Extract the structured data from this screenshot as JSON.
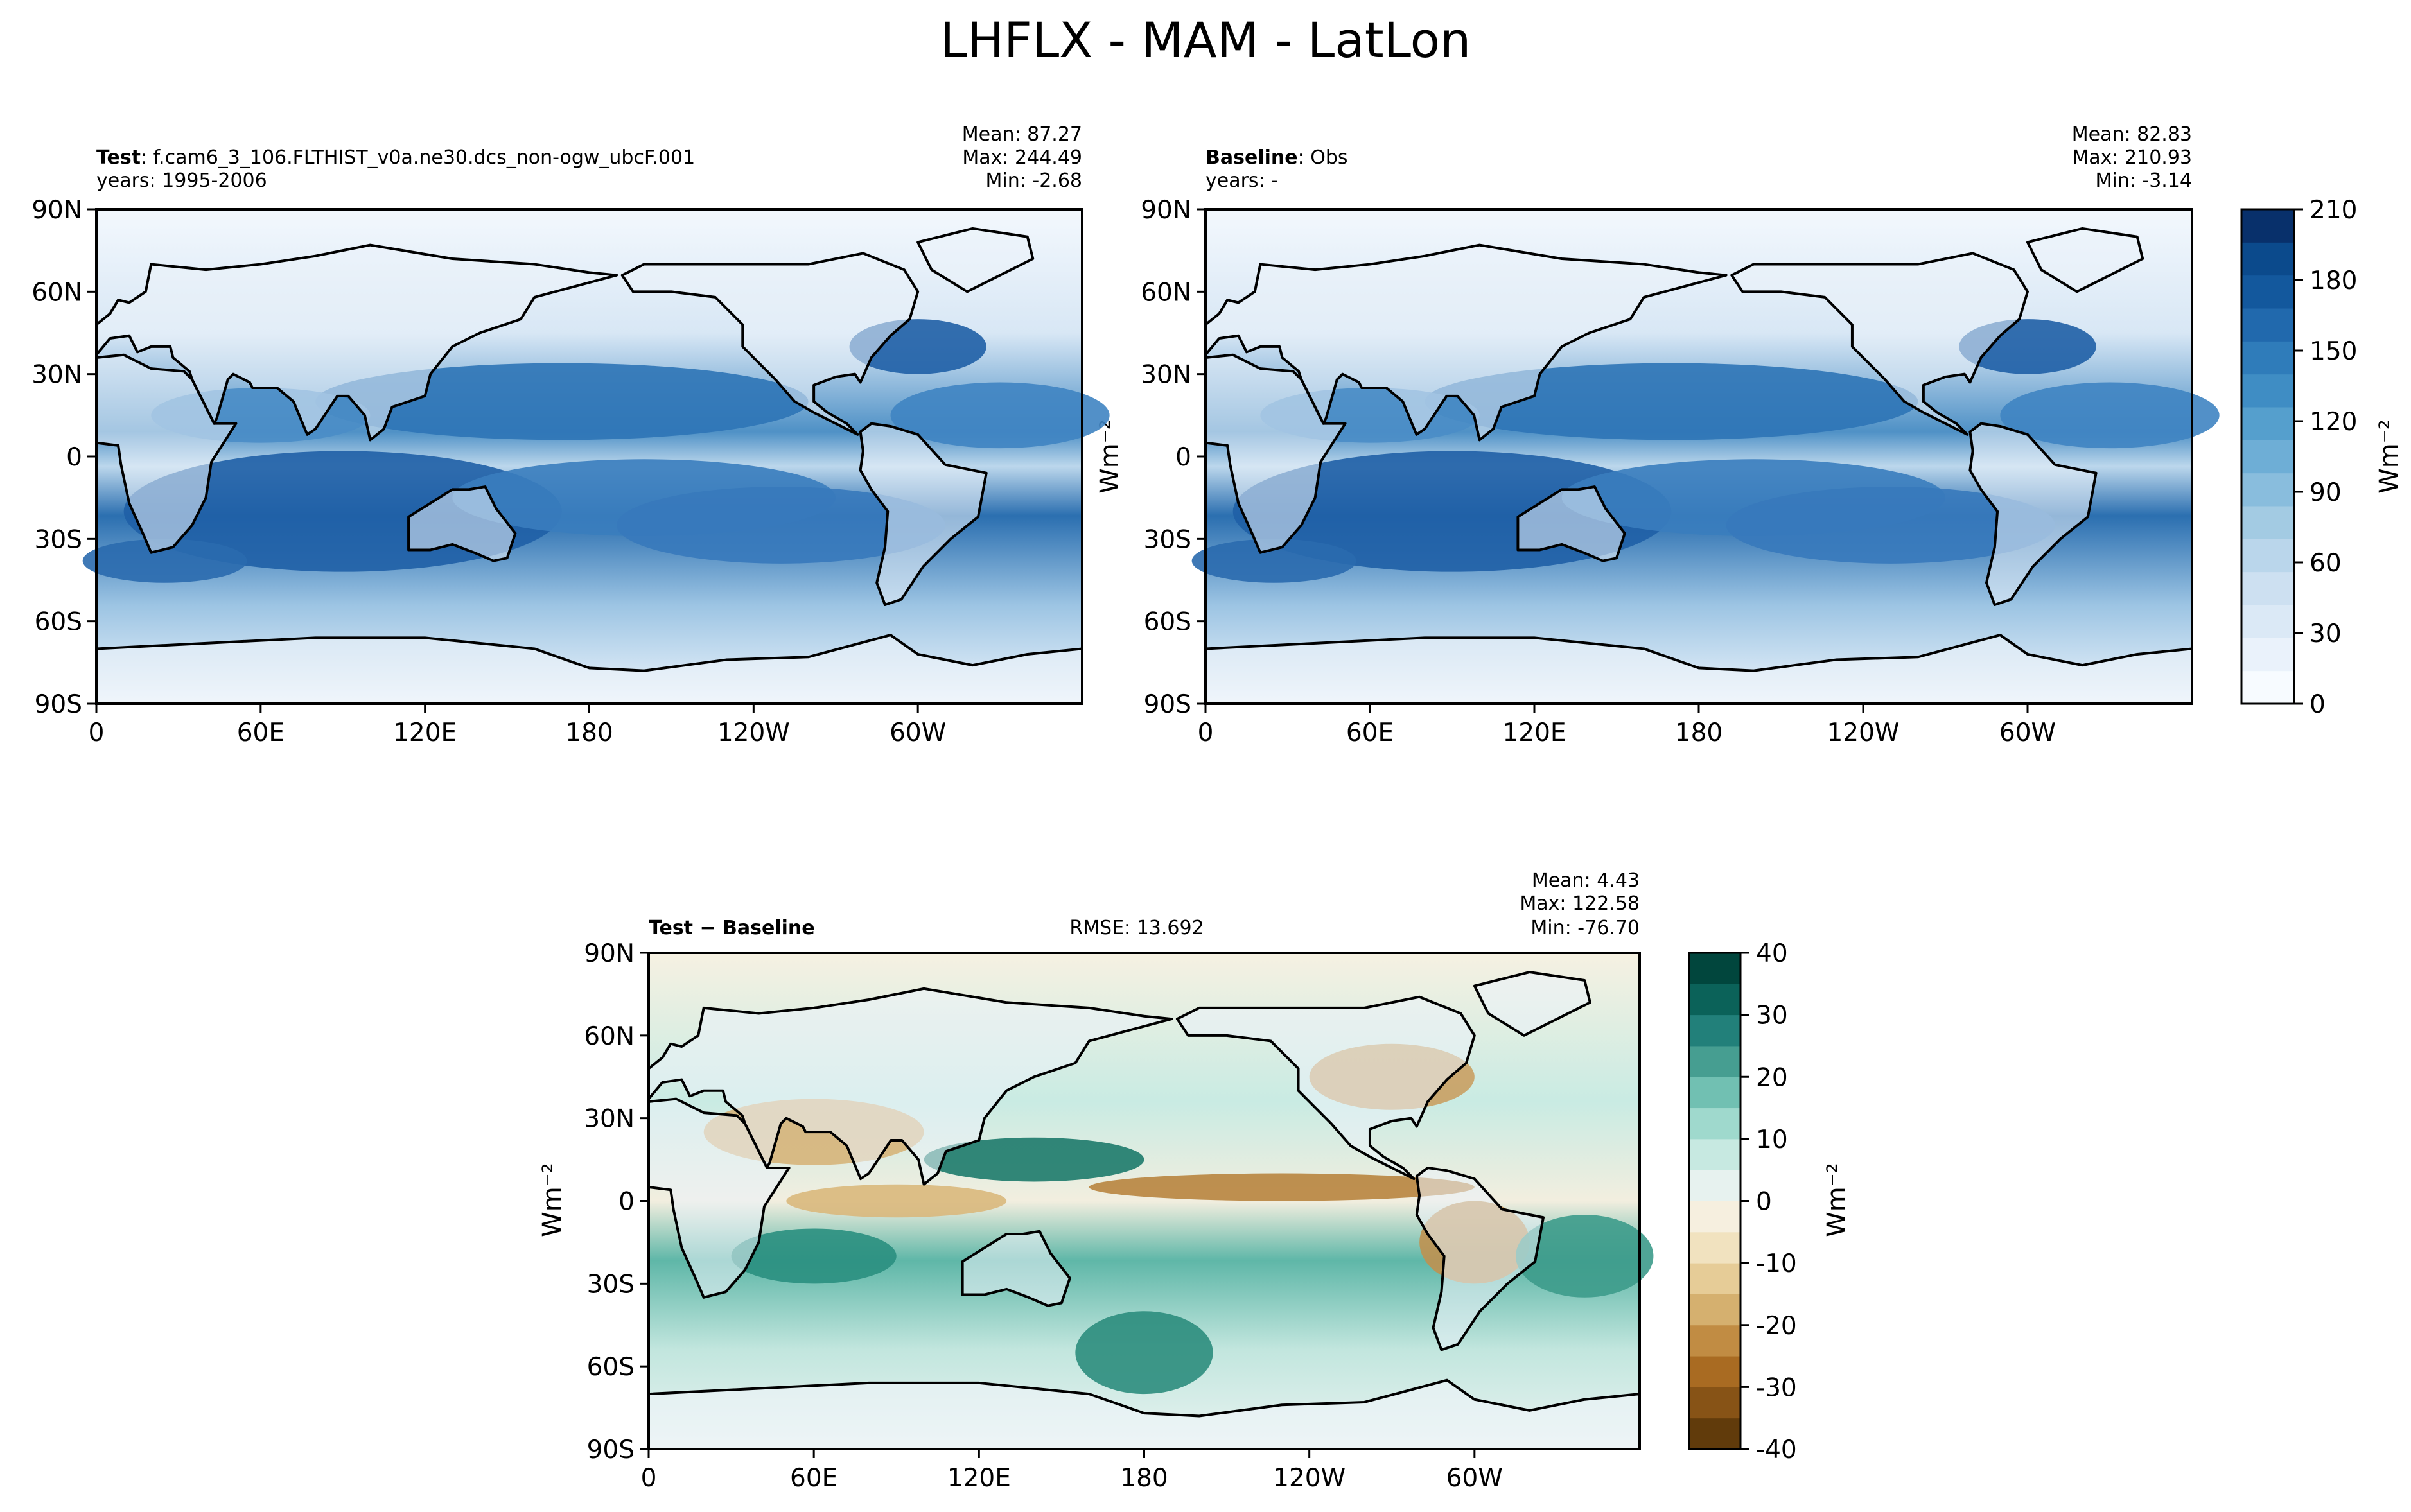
{
  "figure_title": "LHFLX - MAM - LatLon",
  "panels": {
    "test": {
      "label_bold": "Test",
      "label_rest": ": f.cam6_3_106.FLTHIST_v0a.ne30.dcs_non-ogw_ubcF.001",
      "years": "years: 1995-2006",
      "mean": "Mean: 87.27",
      "max": "Max: 244.49",
      "min": "Min: -2.68"
    },
    "baseline": {
      "label_bold": "Baseline",
      "label_rest": ": Obs",
      "years": "years: -",
      "mean": "Mean: 82.83",
      "max": "Max: 210.93",
      "min": "Min: -3.14"
    },
    "diff": {
      "label": "Test − Baseline",
      "rmse": "RMSE: 13.692",
      "mean": "Mean:  4.43",
      "max": "Max: 122.58",
      "min": "Min: -76.70"
    }
  },
  "units_label": "Wm⁻²",
  "chart_data": [
    {
      "type": "heatmap",
      "title": "Test: f.cam6_3_106.FLTHIST_v0a.ne30.dcs_non-ogw_ubcF.001",
      "x_ticks": [
        "0",
        "60E",
        "120E",
        "180",
        "120W",
        "60W"
      ],
      "y_ticks": [
        "90N",
        "60N",
        "30N",
        "0",
        "30S",
        "60S",
        "90S"
      ],
      "stats": {
        "mean": 87.27,
        "max": 244.49,
        "min": -2.68
      },
      "colorbar": {
        "ticks": [
          0,
          30,
          60,
          90,
          120,
          150,
          180,
          210
        ],
        "label": "Wm⁻²",
        "colormap": "Blues"
      }
    },
    {
      "type": "heatmap",
      "title": "Baseline: Obs",
      "x_ticks": [
        "0",
        "60E",
        "120E",
        "180",
        "120W",
        "60W"
      ],
      "y_ticks": [
        "90N",
        "60N",
        "30N",
        "0",
        "30S",
        "60S",
        "90S"
      ],
      "stats": {
        "mean": 82.83,
        "max": 210.93,
        "min": -3.14
      },
      "colorbar": {
        "ticks": [
          0,
          30,
          60,
          90,
          120,
          150,
          180,
          210
        ],
        "label": "Wm⁻²",
        "colormap": "Blues"
      }
    },
    {
      "type": "heatmap",
      "title": "Test − Baseline",
      "x_ticks": [
        "0",
        "60E",
        "120E",
        "180",
        "120W",
        "60W"
      ],
      "y_ticks": [
        "90N",
        "60N",
        "30N",
        "0",
        "30S",
        "60S",
        "90S"
      ],
      "stats": {
        "mean": 4.43,
        "max": 122.58,
        "min": -76.7,
        "rmse": 13.692
      },
      "colorbar": {
        "ticks": [
          -40,
          -30,
          -20,
          -10,
          0,
          10,
          20,
          30,
          40
        ],
        "label": "Wm⁻²",
        "colormap": "BrBG"
      }
    }
  ]
}
